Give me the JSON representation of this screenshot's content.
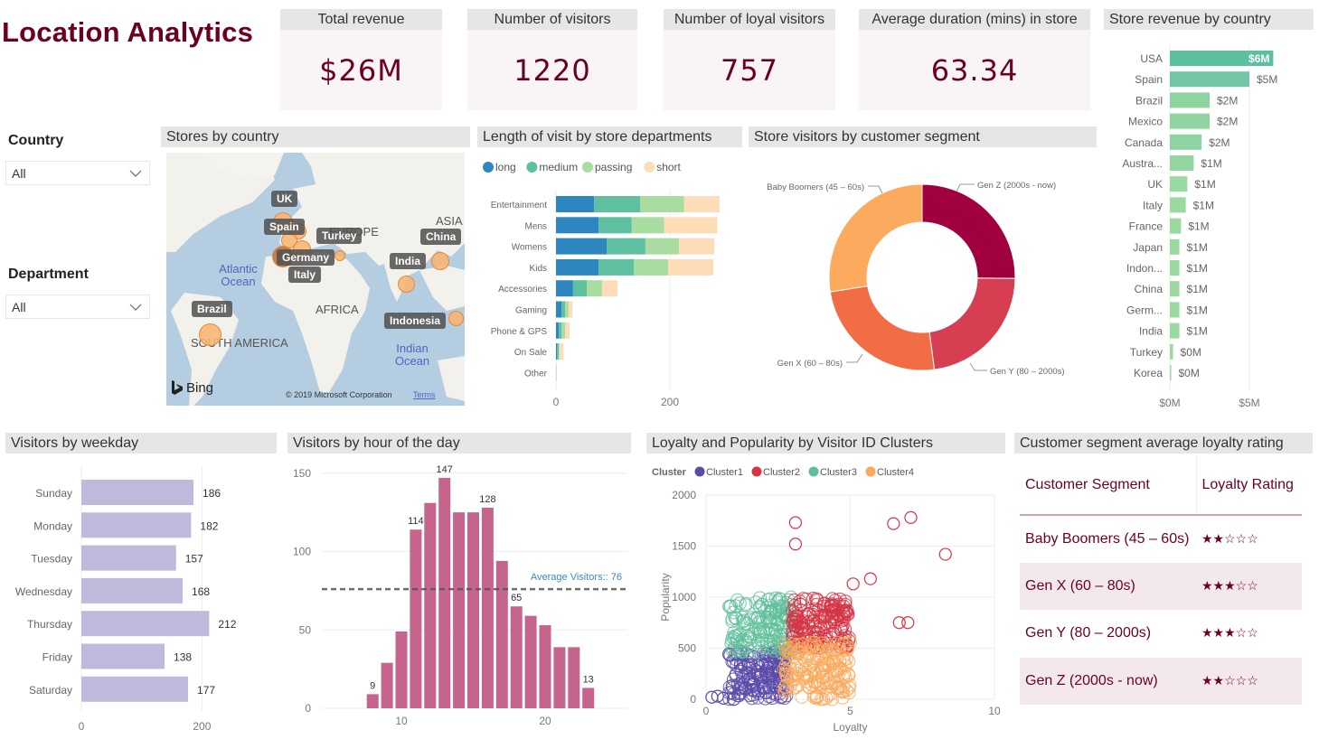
{
  "header": {
    "title": "Location Analytics"
  },
  "kpis": [
    {
      "label": "Total revenue",
      "value": "$26M"
    },
    {
      "label": "Number of visitors",
      "value": "1220"
    },
    {
      "label": "Number of loyal visitors",
      "value": "757"
    },
    {
      "label": "Average duration (mins) in store",
      "value": "63.34"
    }
  ],
  "filters": {
    "country": {
      "label": "Country",
      "value": "All"
    },
    "department": {
      "label": "Department",
      "value": "All"
    }
  },
  "colors": {
    "brand": "#6b0024",
    "header_bg": "#e6e6e6",
    "kpi_bg": "#f9f4f6"
  },
  "map": {
    "title": "Stores by country",
    "country_labels": [
      "UK",
      "Spain",
      "Turkey",
      "Germany",
      "Italy",
      "China",
      "India",
      "Brazil",
      "Indonesia"
    ],
    "region_labels": [
      "EUROPE",
      "ASIA",
      "AFRICA",
      "SOUTH AMERICA"
    ],
    "ocean_labels": [
      "Atlantic Ocean",
      "Indian Ocean"
    ],
    "provider": "Bing",
    "copyright": "© 2019 Microsoft Corporation",
    "terms_link": "Terms"
  },
  "chart_data": [
    {
      "id": "revenue_by_country",
      "type": "bar",
      "orientation": "horizontal",
      "title": "Store revenue by country",
      "categories": [
        "USA",
        "Spain",
        "Brazil",
        "Mexico",
        "Canada",
        "Austra...",
        "UK",
        "Italy",
        "France",
        "Japan",
        "Indon...",
        "China",
        "Germ...",
        "India",
        "Turkey",
        "Korea"
      ],
      "values": [
        6.5,
        5.0,
        2.5,
        2.5,
        2.0,
        1.5,
        1.1,
        1.0,
        0.7,
        0.6,
        0.6,
        0.6,
        0.6,
        0.6,
        0.2,
        0.05
      ],
      "data_labels": [
        "$6M",
        "$5M",
        "$2M",
        "$2M",
        "$2M",
        "$1M",
        "$1M",
        "$1M",
        "$1M",
        "$1M",
        "$1M",
        "$1M",
        "$1M",
        "$1M",
        "$0M",
        "$0M"
      ],
      "unit": "$M",
      "xlim": [
        0,
        8
      ],
      "xticks": [
        "$0M",
        "$5M"
      ],
      "xtick_values": [
        0,
        5
      ],
      "colors": [
        "#5cc0a0",
        "#71c7a5",
        "#8fd4a0",
        "#8fd4a0",
        "#8fd4a0",
        "#93d6a0",
        "#9ad9a0",
        "#9ad9a0",
        "#9ad9a0",
        "#9ad9a0",
        "#9ad9a0",
        "#9ad9a0",
        "#9ad9a0",
        "#9ad9a0",
        "#9ad9a0",
        "#9ad9a0"
      ]
    },
    {
      "id": "visit_length_by_department",
      "type": "bar",
      "orientation": "horizontal",
      "stacked": true,
      "title": "Length of visit by store departments",
      "categories": [
        "Entertainment",
        "Mens",
        "Womens",
        "Kids",
        "Accessories",
        "Gaming",
        "Phone & GPS",
        "On Sale",
        "Other"
      ],
      "series": [
        {
          "name": "long",
          "color": "#2e86c1",
          "values": [
            67,
            75,
            89,
            75,
            30,
            10,
            5,
            2,
            0.5
          ]
        },
        {
          "name": "medium",
          "color": "#5fbfa1",
          "values": [
            81,
            58,
            68,
            62,
            24,
            6,
            5,
            3,
            0
          ]
        },
        {
          "name": "passing",
          "color": "#a8dca0",
          "values": [
            77,
            57,
            59,
            60,
            27,
            6,
            6,
            1,
            0
          ]
        },
        {
          "name": "short",
          "color": "#fddcb8",
          "values": [
            62,
            93,
            62,
            79,
            27,
            7,
            8,
            7,
            0.5
          ]
        }
      ],
      "xlim": [
        0,
        290
      ],
      "xticks": [
        0,
        200
      ],
      "legend": "top-left"
    },
    {
      "id": "visitors_by_segment",
      "type": "pie",
      "donut": true,
      "title": "Store visitors by customer segment",
      "labels": [
        "Gen Z (2000s - now)",
        "Gen Y (80 – 2000s)",
        "Gen X (60 – 80s)",
        "Baby Boomers (45 – 60s)"
      ],
      "values": [
        25.2,
        22.7,
        24.6,
        27.5
      ],
      "colors": [
        "#a0003f",
        "#d63f52",
        "#f26d45",
        "#fbaa5e"
      ]
    },
    {
      "id": "visitors_by_weekday",
      "type": "bar",
      "orientation": "horizontal",
      "title": "Visitors by weekday",
      "categories": [
        "Sunday",
        "Monday",
        "Tuesday",
        "Wednesday",
        "Thursday",
        "Friday",
        "Saturday"
      ],
      "values": [
        186,
        182,
        157,
        168,
        212,
        138,
        177
      ],
      "xlim": [
        0,
        230
      ],
      "xticks": [
        0,
        200
      ],
      "color": "#bfb9db"
    },
    {
      "id": "visitors_by_hour",
      "type": "bar",
      "title": "Visitors by hour of the day",
      "x": [
        8,
        9,
        10,
        11,
        12,
        13,
        14,
        15,
        16,
        17,
        18,
        19,
        20,
        21,
        22,
        23
      ],
      "values": [
        9,
        29,
        49,
        114,
        131,
        147,
        125,
        125,
        128,
        94,
        65,
        59,
        53,
        39,
        39,
        13
      ],
      "labeled": {
        "8": "9",
        "11": "114",
        "13": "147",
        "16": "128",
        "18": "65",
        "23": "13"
      },
      "reference_line": {
        "label": "Average Visitors:: 76",
        "value": 76
      },
      "ylim": [
        0,
        150
      ],
      "yticks": [
        0,
        50,
        100,
        150
      ],
      "xlim": [
        3.5,
        24.5
      ],
      "xticks": [
        10,
        20
      ],
      "color": "#c7648e"
    },
    {
      "id": "loyalty_popularity_clusters",
      "type": "scatter",
      "title": "Loyalty and Popularity by Visitor ID Clusters",
      "legend_title": "Cluster",
      "xlabel": "Loyalty",
      "ylabel": "Popularity",
      "xlim": [
        0,
        10
      ],
      "ylim": [
        0,
        2000
      ],
      "xticks": [
        0,
        5,
        10
      ],
      "yticks": [
        0,
        500,
        1000,
        1500,
        2000
      ],
      "grid": true,
      "series": [
        {
          "name": "Cluster1",
          "color": "#5b4aa8",
          "region": {
            "x": [
              0.8,
              2.8
            ],
            "y": [
              0,
              480
            ]
          },
          "extra_points": [
            [
              0.2,
              20
            ],
            [
              0.4,
              30
            ],
            [
              0.6,
              10
            ]
          ]
        },
        {
          "name": "Cluster2",
          "color": "#d63444",
          "region": {
            "x": [
              3.0,
              5.0
            ],
            "y": [
              500,
              1000
            ]
          },
          "extra_points": [
            [
              3.1,
              1730
            ],
            [
              3.1,
              1520
            ],
            [
              5.1,
              1130
            ],
            [
              5.7,
              1180
            ],
            [
              6.5,
              1720
            ],
            [
              7.1,
              1780
            ],
            [
              8.3,
              1420
            ],
            [
              6.7,
              750
            ],
            [
              7.0,
              750
            ]
          ]
        },
        {
          "name": "Cluster3",
          "color": "#5fbf9b",
          "region": {
            "x": [
              0.8,
              3.1
            ],
            "y": [
              450,
              1000
            ]
          },
          "extra_points": []
        },
        {
          "name": "Cluster4",
          "color": "#fba85a",
          "region": {
            "x": [
              2.7,
              5.0
            ],
            "y": [
              0,
              560
            ]
          },
          "extra_points": []
        }
      ]
    }
  ],
  "loyalty_table": {
    "title": "Customer segment average loyalty rating",
    "columns": [
      "Customer Segment",
      "Loyalty Rating"
    ],
    "rows": [
      {
        "segment": "Baby Boomers (45 – 60s)",
        "rating": 2,
        "max": 5
      },
      {
        "segment": "Gen X (60 – 80s)",
        "rating": 3,
        "max": 5
      },
      {
        "segment": "Gen Y (80 – 2000s)",
        "rating": 3,
        "max": 5
      },
      {
        "segment": "Gen Z (2000s - now)",
        "rating": 2,
        "max": 5
      }
    ]
  }
}
